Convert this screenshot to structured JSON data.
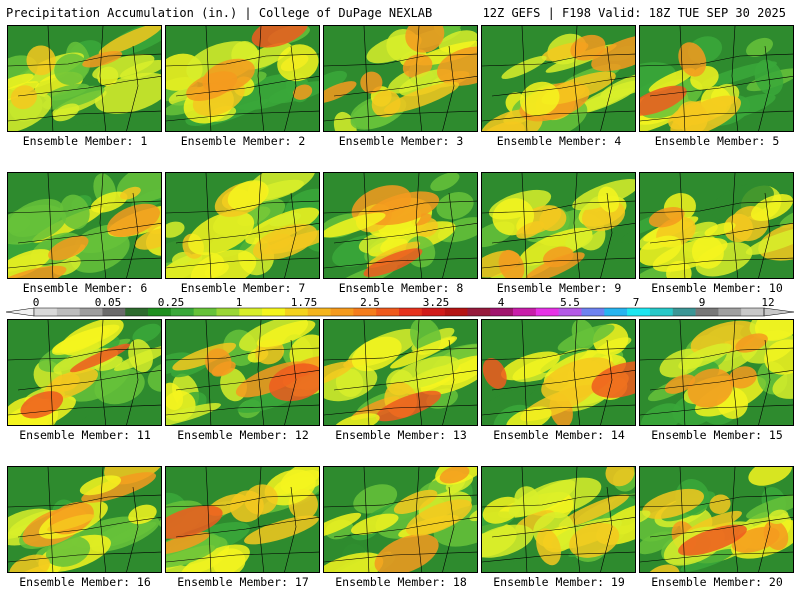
{
  "header": {
    "left_title": "Precipitation Accumulation (in.) | College of DuPage NEXLAB",
    "right_title": "12Z GEFS | F198 Valid: 18Z TUE SEP 30 2025"
  },
  "panels": [
    {
      "label": "Ensemble Member: 1"
    },
    {
      "label": "Ensemble Member: 2"
    },
    {
      "label": "Ensemble Member: 3"
    },
    {
      "label": "Ensemble Member: 4"
    },
    {
      "label": "Ensemble Member: 5"
    },
    {
      "label": "Ensemble Member: 6"
    },
    {
      "label": "Ensemble Member: 7"
    },
    {
      "label": "Ensemble Member: 8"
    },
    {
      "label": "Ensemble Member: 9"
    },
    {
      "label": "Ensemble Member: 10"
    },
    {
      "label": "Ensemble Member: 11"
    },
    {
      "label": "Ensemble Member: 12"
    },
    {
      "label": "Ensemble Member: 13"
    },
    {
      "label": "Ensemble Member: 14"
    },
    {
      "label": "Ensemble Member: 15"
    },
    {
      "label": "Ensemble Member: 16"
    },
    {
      "label": "Ensemble Member: 17"
    },
    {
      "label": "Ensemble Member: 18"
    },
    {
      "label": "Ensemble Member: 19"
    },
    {
      "label": "Ensemble Member: 20"
    }
  ],
  "colorbar": {
    "tick_labels": [
      "0",
      "0.05",
      "0.25",
      "1",
      "1.75",
      "2.5",
      "3.25",
      "4",
      "5.5",
      "7",
      "9",
      "12"
    ],
    "colors": [
      "#d9d9d9",
      "#bdbdbd",
      "#9e9e9e",
      "#6b6b6b",
      "#2e6b2e",
      "#1f8f1f",
      "#3aa83a",
      "#66c23a",
      "#9ad636",
      "#d8ee2a",
      "#f5f51e",
      "#f5d21e",
      "#f5b41e",
      "#f59a1e",
      "#f57d1e",
      "#ef5a1e",
      "#e5321e",
      "#d11a1a",
      "#b51414",
      "#961a3c",
      "#a0146e",
      "#c81eaa",
      "#e632e6",
      "#b45ae6",
      "#6e82f0",
      "#28b4f0",
      "#1ee6f0",
      "#28c8c8",
      "#3c9696",
      "#787878",
      "#a0a0a0",
      "#c8c8c8"
    ]
  }
}
